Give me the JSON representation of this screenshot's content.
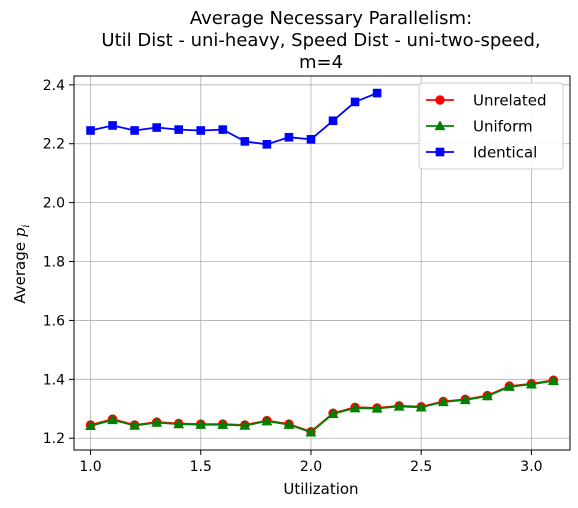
{
  "chart_data": {
    "type": "line",
    "title": [
      "Average Necessary Parallelism:",
      "Util Dist - uni-heavy, Speed Dist - uni-two-speed,",
      "m=4"
    ],
    "xlabel": "Utilization",
    "ylabel": "Average",
    "ylabel_symbol": "p",
    "ylabel_subscript": "i",
    "xlim": [
      0.925,
      3.175
    ],
    "ylim": [
      1.16,
      2.43
    ],
    "xticks": [
      1.0,
      1.5,
      2.0,
      2.5,
      3.0
    ],
    "xtick_labels": [
      "1.0",
      "1.5",
      "2.0",
      "2.5",
      "3.0"
    ],
    "yticks": [
      1.2,
      1.4,
      1.6,
      1.8,
      2.0,
      2.2,
      2.4
    ],
    "ytick_labels": [
      "1.2",
      "1.4",
      "1.6",
      "1.8",
      "2.0",
      "2.2",
      "2.4"
    ],
    "grid": true,
    "legend_position": "top-right",
    "series": [
      {
        "name": "Unrelated",
        "color": "#ff0000",
        "marker": "circle",
        "x": [
          1.0,
          1.1,
          1.2,
          1.3,
          1.4,
          1.5,
          1.6,
          1.7,
          1.8,
          1.9,
          2.0,
          2.1,
          2.2,
          2.3,
          2.4,
          2.5,
          2.6,
          2.7,
          2.8,
          2.9,
          3.0,
          3.1
        ],
        "y": [
          1.245,
          1.265,
          1.245,
          1.255,
          1.25,
          1.248,
          1.248,
          1.245,
          1.26,
          1.248,
          1.222,
          1.285,
          1.305,
          1.303,
          1.31,
          1.307,
          1.325,
          1.332,
          1.345,
          1.377,
          1.385,
          1.397
        ]
      },
      {
        "name": "Uniform",
        "color": "#008000",
        "marker": "triangle",
        "x": [
          1.0,
          1.1,
          1.2,
          1.3,
          1.4,
          1.5,
          1.6,
          1.7,
          1.8,
          1.9,
          2.0,
          2.1,
          2.2,
          2.3,
          2.4,
          2.5,
          2.6,
          2.7,
          2.8,
          2.9,
          3.0,
          3.1
        ],
        "y": [
          1.242,
          1.262,
          1.243,
          1.253,
          1.248,
          1.246,
          1.246,
          1.243,
          1.258,
          1.246,
          1.22,
          1.283,
          1.302,
          1.301,
          1.308,
          1.305,
          1.323,
          1.33,
          1.343,
          1.375,
          1.383,
          1.395
        ]
      },
      {
        "name": "Identical",
        "color": "#0000ff",
        "marker": "square",
        "x": [
          1.0,
          1.1,
          1.2,
          1.3,
          1.4,
          1.5,
          1.6,
          1.7,
          1.8,
          1.9,
          2.0,
          2.1,
          2.2,
          2.3
        ],
        "y": [
          2.245,
          2.262,
          2.245,
          2.255,
          2.248,
          2.245,
          2.248,
          2.208,
          2.198,
          2.222,
          2.215,
          2.278,
          2.342,
          2.372
        ]
      }
    ]
  }
}
